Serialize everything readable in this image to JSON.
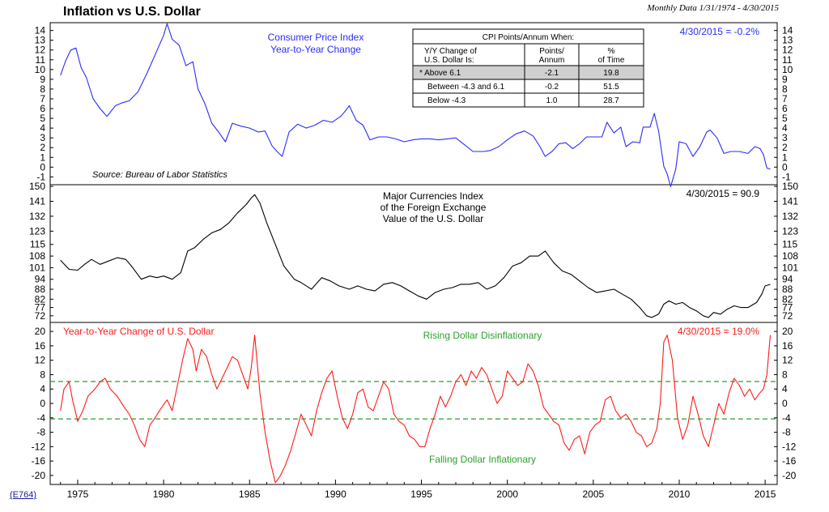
{
  "header": {
    "title": "Inflation vs U.S. Dollar",
    "subtitle": "Monthly Data 1/31/1974 - 4/30/2015",
    "code": "(E764)"
  },
  "colors": {
    "cpi": "#2b2bff",
    "dollar": "#000000",
    "change": "#ff1a1a",
    "band": "#2aa02a"
  },
  "chart_data": [
    {
      "type": "line",
      "panel": "top",
      "series": [
        {
          "name": "Consumer Price Index Year-to-Year Change",
          "x": [
            1974.0,
            1974.3,
            1974.6,
            1974.9,
            1975.2,
            1975.5,
            1975.9,
            1976.3,
            1976.7,
            1977.2,
            1977.6,
            1978.0,
            1978.5,
            1979.0,
            1979.5,
            1980.0,
            1980.2,
            1980.5,
            1980.9,
            1981.3,
            1981.7,
            1982.0,
            1982.4,
            1982.8,
            1983.2,
            1983.6,
            1984.0,
            1984.5,
            1985.0,
            1985.5,
            1985.9,
            1986.3,
            1986.6,
            1986.9,
            1987.3,
            1987.8,
            1988.3,
            1988.8,
            1989.3,
            1989.8,
            1990.3,
            1990.6,
            1990.8,
            1991.2,
            1991.6,
            1992.0,
            1992.5,
            1993.0,
            1993.5,
            1994.0,
            1994.5,
            1995.0,
            1995.5,
            1996.0,
            1996.5,
            1997.0,
            1997.5,
            1998.0,
            1998.6,
            1999.0,
            1999.5,
            2000.0,
            2000.5,
            2001.0,
            2001.5,
            2001.9,
            2002.2,
            2002.6,
            2003.0,
            2003.4,
            2003.8,
            2004.2,
            2004.6,
            2005.0,
            2005.5,
            2005.8,
            2006.2,
            2006.6,
            2006.9,
            2007.3,
            2007.7,
            2007.9,
            2008.3,
            2008.55,
            2008.8,
            2009.1,
            2009.3,
            2009.5,
            2009.8,
            2010.0,
            2010.4,
            2010.8,
            2011.2,
            2011.6,
            2011.8,
            2012.2,
            2012.6,
            2013.0,
            2013.5,
            2014.0,
            2014.4,
            2014.7,
            2014.9,
            2015.1,
            2015.3
          ],
          "values": [
            9.4,
            10.9,
            12.0,
            12.2,
            10.2,
            9.2,
            7.0,
            6.0,
            5.2,
            6.3,
            6.6,
            6.8,
            7.7,
            9.5,
            11.5,
            13.5,
            14.7,
            13.1,
            12.5,
            10.4,
            10.8,
            8.0,
            6.5,
            4.5,
            3.6,
            2.6,
            4.5,
            4.2,
            4.0,
            3.6,
            3.7,
            2.2,
            1.6,
            1.1,
            3.6,
            4.4,
            4.0,
            4.3,
            4.8,
            4.6,
            5.2,
            5.8,
            6.3,
            4.8,
            4.3,
            2.8,
            3.1,
            3.1,
            2.9,
            2.6,
            2.8,
            2.9,
            2.9,
            2.8,
            2.9,
            3.0,
            2.3,
            1.6,
            1.6,
            1.7,
            2.1,
            2.8,
            3.4,
            3.7,
            3.2,
            2.1,
            1.1,
            1.6,
            2.4,
            2.5,
            1.9,
            2.4,
            3.1,
            3.1,
            3.1,
            4.6,
            3.5,
            4.1,
            2.1,
            2.6,
            2.5,
            4.1,
            4.1,
            5.5,
            3.7,
            0.1,
            -0.7,
            -2.0,
            -0.2,
            2.6,
            2.4,
            1.1,
            2.1,
            3.6,
            3.8,
            3.0,
            1.4,
            1.6,
            1.6,
            1.4,
            2.1,
            1.9,
            1.3,
            -0.1,
            -0.2
          ]
        }
      ],
      "labels": [
        "Consumer Price Index",
        "Year-to-Year Change"
      ],
      "annotation": "4/30/2015 = -0.2%",
      "source": "Source: Bureau of Labor Statistics",
      "ylim": [
        -1.8,
        14.8
      ],
      "yticks": [
        -1,
        0,
        1,
        2,
        3,
        4,
        5,
        6,
        7,
        8,
        9,
        10,
        11,
        12,
        13,
        14
      ],
      "table": {
        "title": "CPI Points/Annum When:",
        "headers": [
          "Y/Y Change of U.S. Dollar Is:",
          "Points/ Annum",
          "% of Time"
        ],
        "rows": [
          {
            "cond": "* Above 6.1",
            "points": "-2.1",
            "pct": "19.8"
          },
          {
            "cond": "Between -4.3 and 6.1",
            "points": "-0.2",
            "pct": "51.5"
          },
          {
            "cond": "Below -4.3",
            "points": "1.0",
            "pct": "28.7"
          }
        ]
      }
    },
    {
      "type": "line",
      "panel": "middle",
      "series": [
        {
          "name": "Major Currencies Index of the Foreign Exchange Value of the U.S. Dollar",
          "x": [
            1974.0,
            1974.5,
            1975.0,
            1975.4,
            1975.8,
            1976.3,
            1976.8,
            1977.3,
            1977.8,
            1978.2,
            1978.7,
            1979.2,
            1979.6,
            1980.0,
            1980.5,
            1981.0,
            1981.4,
            1981.8,
            1982.3,
            1982.8,
            1983.3,
            1983.8,
            1984.3,
            1984.8,
            1985.1,
            1985.3,
            1985.6,
            1986.0,
            1986.5,
            1987.0,
            1987.6,
            1988.0,
            1988.6,
            1989.2,
            1989.7,
            1990.2,
            1990.8,
            1991.3,
            1991.8,
            1992.3,
            1992.8,
            1993.3,
            1993.8,
            1994.3,
            1994.8,
            1995.3,
            1995.8,
            1996.3,
            1996.8,
            1997.3,
            1997.8,
            1998.3,
            1998.8,
            1999.3,
            1999.8,
            2000.3,
            2000.8,
            2001.3,
            2001.8,
            2002.2,
            2002.7,
            2003.2,
            2003.7,
            2004.2,
            2004.7,
            2005.2,
            2005.7,
            2006.2,
            2006.7,
            2007.2,
            2007.7,
            2008.1,
            2008.4,
            2008.8,
            2009.1,
            2009.4,
            2009.8,
            2010.2,
            2010.6,
            2011.0,
            2011.4,
            2011.7,
            2012.0,
            2012.4,
            2012.8,
            2013.2,
            2013.6,
            2014.0,
            2014.5,
            2014.8,
            2015.0,
            2015.3
          ],
          "values": [
            105.5,
            100,
            99.5,
            103,
            106,
            103,
            105,
            107,
            106,
            101,
            94,
            96,
            95,
            96,
            94,
            98,
            111,
            113,
            118,
            122,
            124,
            128,
            134,
            139,
            143,
            145,
            140,
            128,
            115,
            102,
            94,
            92,
            88,
            95,
            93,
            90,
            88,
            90,
            88,
            87,
            91,
            92,
            90,
            87,
            84,
            82,
            86,
            88,
            89,
            91,
            91,
            92,
            88,
            90,
            95,
            102,
            104,
            108,
            108,
            111,
            104,
            99,
            97,
            93,
            89,
            86,
            87,
            88,
            85,
            82,
            77,
            72,
            71,
            73,
            79,
            81,
            79,
            80,
            77,
            75,
            72,
            71,
            74,
            73,
            76,
            78,
            77,
            77,
            80,
            85,
            90,
            90.9
          ]
        }
      ],
      "labels": [
        "Major Currencies Index",
        "of the Foreign Exchange",
        "Value of the U.S. Dollar"
      ],
      "annotation": "4/30/2015 = 90.9",
      "ylim": [
        68,
        151
      ],
      "yticks": [
        72,
        77,
        82,
        88,
        94,
        101,
        108,
        115,
        123,
        132,
        141,
        150
      ]
    },
    {
      "type": "line",
      "panel": "bottom",
      "series": [
        {
          "name": "Year-to-Year Change of U.S. Dollar",
          "x": [
            1974.0,
            1974.2,
            1974.5,
            1974.7,
            1975.0,
            1975.3,
            1975.6,
            1976.0,
            1976.3,
            1976.6,
            1976.9,
            1977.3,
            1977.7,
            1978.0,
            1978.3,
            1978.6,
            1978.9,
            1979.2,
            1979.5,
            1979.9,
            1980.2,
            1980.5,
            1980.8,
            1981.1,
            1981.4,
            1981.7,
            1981.9,
            1982.2,
            1982.5,
            1982.8,
            1983.1,
            1983.4,
            1983.7,
            1984.0,
            1984.3,
            1984.6,
            1984.9,
            1985.1,
            1985.3,
            1985.6,
            1985.9,
            1986.2,
            1986.5,
            1986.8,
            1987.1,
            1987.4,
            1987.7,
            1988.0,
            1988.3,
            1988.6,
            1988.9,
            1989.2,
            1989.5,
            1989.8,
            1990.1,
            1990.4,
            1990.7,
            1991.0,
            1991.3,
            1991.6,
            1991.9,
            1992.2,
            1992.5,
            1992.8,
            1993.1,
            1993.4,
            1993.7,
            1994.0,
            1994.3,
            1994.6,
            1994.9,
            1995.2,
            1995.5,
            1995.8,
            1996.1,
            1996.4,
            1996.7,
            1997.0,
            1997.3,
            1997.6,
            1997.9,
            1998.2,
            1998.5,
            1998.8,
            1999.1,
            1999.4,
            1999.7,
            2000.0,
            2000.3,
            2000.6,
            2000.9,
            2001.2,
            2001.5,
            2001.8,
            2002.1,
            2002.4,
            2002.7,
            2003.0,
            2003.3,
            2003.6,
            2003.9,
            2004.2,
            2004.5,
            2004.8,
            2005.1,
            2005.4,
            2005.7,
            2006.0,
            2006.3,
            2006.6,
            2006.9,
            2007.2,
            2007.5,
            2007.8,
            2008.1,
            2008.4,
            2008.7,
            2008.9,
            2009.1,
            2009.3,
            2009.6,
            2009.9,
            2010.2,
            2010.5,
            2010.8,
            2011.1,
            2011.4,
            2011.7,
            2012.0,
            2012.3,
            2012.6,
            2012.9,
            2013.2,
            2013.5,
            2013.8,
            2014.1,
            2014.4,
            2014.7,
            2014.9,
            2015.1,
            2015.3
          ],
          "values": [
            -2,
            4,
            6,
            1,
            -5,
            -2,
            2,
            4,
            6,
            7,
            4,
            2,
            -1,
            -3,
            -6,
            -10,
            -12,
            -6,
            -4,
            -1,
            1,
            -2,
            5,
            12,
            18,
            15,
            9,
            15,
            13,
            8,
            4,
            7,
            10,
            13,
            12,
            8,
            4,
            10,
            19,
            3,
            -8,
            -16,
            -22,
            -20,
            -17,
            -13,
            -8,
            -3,
            -6,
            -9,
            -2,
            3,
            7,
            9,
            2,
            -4,
            -7,
            -3,
            3,
            4,
            -1,
            -2,
            2,
            6,
            4,
            -3,
            -5,
            -6,
            -9,
            -10,
            -12,
            -12,
            -7,
            -3,
            2,
            -1,
            2,
            6,
            8,
            5,
            9,
            7,
            10,
            8,
            4,
            0,
            2,
            9,
            7,
            5,
            6,
            11,
            9,
            5,
            -1,
            -3,
            -5,
            -6,
            -11,
            -13,
            -10,
            -9,
            -14,
            -8,
            -6,
            -5,
            1,
            2,
            -2,
            -4,
            -3,
            -5,
            -8,
            -9,
            -12,
            -11,
            -7,
            0,
            17,
            19,
            12,
            -4,
            -10,
            -6,
            2,
            -3,
            -9,
            -12,
            -6,
            0,
            -3,
            3,
            7,
            5,
            2,
            4,
            1,
            3,
            4,
            8,
            19
          ]
        }
      ],
      "label": "Year-to-Year Change of U.S. Dollar",
      "annotation": "4/30/2015 = 19.0%",
      "bands": [
        {
          "value": 6.1,
          "label": "Rising Dollar Disinflationary"
        },
        {
          "value": -4.3,
          "label": "Falling Dollar Inflationary"
        }
      ],
      "ylim": [
        -22.5,
        22.5
      ],
      "yticks": [
        -20,
        -16,
        -12,
        -8,
        -4,
        0,
        4,
        8,
        12,
        16,
        20
      ]
    }
  ],
  "x_axis": {
    "range": [
      1973.4,
      2015.7
    ],
    "ticks": [
      1975,
      1980,
      1985,
      1990,
      1995,
      2000,
      2005,
      2010,
      2015
    ]
  }
}
